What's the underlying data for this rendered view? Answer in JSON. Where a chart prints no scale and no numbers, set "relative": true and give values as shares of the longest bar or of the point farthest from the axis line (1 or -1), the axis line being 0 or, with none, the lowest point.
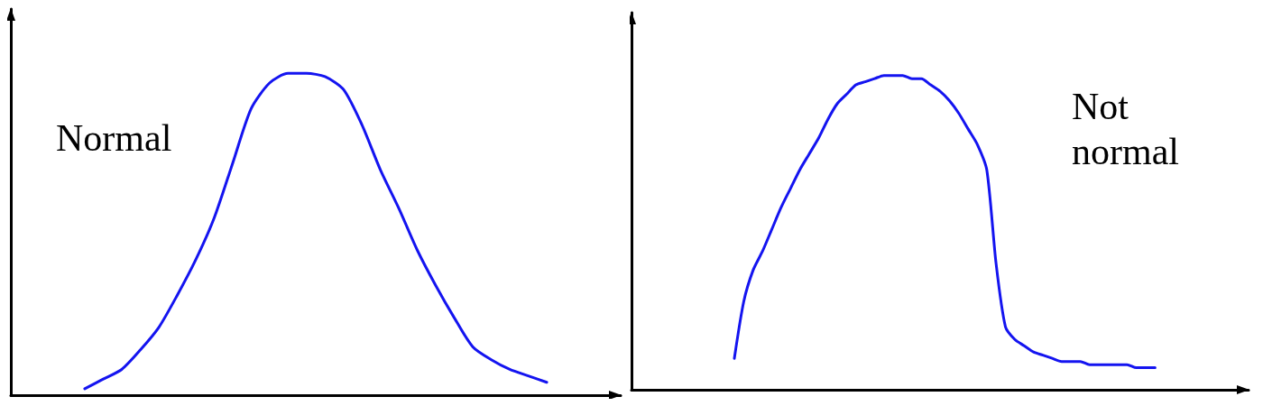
{
  "chart_data": [
    {
      "type": "line",
      "relative": true,
      "tick_labels": false,
      "marker": "none",
      "line_style": "solid",
      "annotations": [
        "Normal"
      ],
      "categories": [
        null,
        null,
        null,
        null,
        null,
        null,
        null,
        null,
        null,
        null,
        null,
        null,
        null,
        null,
        null,
        null,
        null,
        null,
        null,
        null,
        null,
        null,
        null,
        null,
        null,
        null,
        null,
        null,
        null,
        null,
        null,
        null,
        null,
        null
      ],
      "series": [
        {
          "color": "#1414f0",
          "values": [
            null,
            null,
            null,
            null,
            0.02,
            0.05,
            0.08,
            0.14,
            0.21,
            0.31,
            0.42,
            0.55,
            0.72,
            0.89,
            0.97,
            1.0,
            1.0,
            0.99,
            0.95,
            0.84,
            0.7,
            0.58,
            0.45,
            0.34,
            0.24,
            0.15,
            0.11,
            0.08,
            0.06,
            0.04,
            null,
            null,
            null,
            null
          ]
        }
      ]
    },
    {
      "type": "line",
      "relative": true,
      "tick_labels": false,
      "marker": "none",
      "line_style": "solid",
      "annotations": [
        "Not normal"
      ],
      "categories": [
        null,
        null,
        null,
        null,
        null,
        null,
        null,
        null,
        null,
        null,
        null,
        null,
        null,
        null,
        null,
        null,
        null,
        null,
        null,
        null,
        null,
        null,
        null,
        null,
        null,
        null,
        null,
        null,
        null,
        null,
        null,
        null,
        null,
        null,
        null,
        null,
        null,
        null,
        null,
        null,
        null,
        null,
        null,
        null,
        null,
        null,
        null,
        null,
        null,
        null,
        null,
        null,
        null,
        null,
        null,
        null,
        null,
        null,
        null,
        null,
        null,
        null,
        null,
        null,
        null,
        null,
        null
      ],
      "series": [
        {
          "color": "#1414f0",
          "values": [
            null,
            null,
            null,
            null,
            null,
            null,
            null,
            null,
            null,
            null,
            null,
            0.1,
            0.28,
            0.38,
            0.44,
            0.51,
            0.58,
            0.64,
            0.7,
            0.75,
            0.8,
            0.86,
            0.91,
            0.94,
            0.97,
            0.98,
            0.99,
            1.0,
            1.0,
            1.0,
            0.99,
            0.99,
            0.97,
            0.95,
            0.92,
            0.88,
            0.83,
            0.78,
            0.7,
            0.4,
            0.2,
            0.16,
            0.14,
            0.12,
            0.11,
            0.1,
            0.09,
            0.09,
            0.09,
            0.08,
            0.08,
            0.08,
            0.08,
            0.08,
            0.07,
            0.07,
            0.07,
            null,
            null,
            null,
            null,
            null,
            null,
            null,
            null,
            null,
            null
          ]
        }
      ]
    }
  ]
}
